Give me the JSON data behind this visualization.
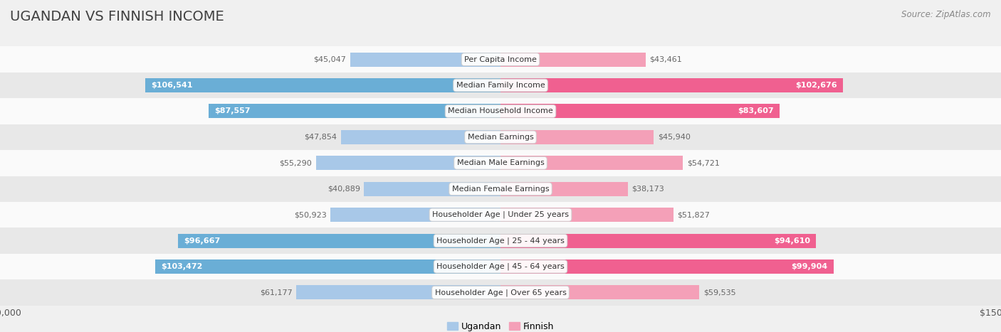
{
  "title": "UGANDAN VS FINNISH INCOME",
  "source": "Source: ZipAtlas.com",
  "categories": [
    "Per Capita Income",
    "Median Family Income",
    "Median Household Income",
    "Median Earnings",
    "Median Male Earnings",
    "Median Female Earnings",
    "Householder Age | Under 25 years",
    "Householder Age | 25 - 44 years",
    "Householder Age | 45 - 64 years",
    "Householder Age | Over 65 years"
  ],
  "ugandan_values": [
    45047,
    106541,
    87557,
    47854,
    55290,
    40889,
    50923,
    96667,
    103472,
    61177
  ],
  "finnish_values": [
    43461,
    102676,
    83607,
    45940,
    54721,
    38173,
    51827,
    94610,
    99904,
    59535
  ],
  "ugandan_labels": [
    "$45,047",
    "$106,541",
    "$87,557",
    "$47,854",
    "$55,290",
    "$40,889",
    "$50,923",
    "$96,667",
    "$103,472",
    "$61,177"
  ],
  "finnish_labels": [
    "$43,461",
    "$102,676",
    "$83,607",
    "$45,940",
    "$54,721",
    "$38,173",
    "$51,827",
    "$94,610",
    "$99,904",
    "$59,535"
  ],
  "ugandan_color_normal": "#a8c8e8",
  "ugandan_color_large": "#6aaed6",
  "finnish_color_normal": "#f4a0b8",
  "finnish_color_large": "#f06090",
  "large_threshold": 80000,
  "max_value": 150000,
  "background_color": "#f0f0f0",
  "row_bg_light": "#fafafa",
  "row_bg_dark": "#e8e8e8",
  "bar_height": 0.55,
  "legend_ugandan": "Ugandan",
  "legend_finnish": "Finnish",
  "title_fontsize": 14,
  "label_fontsize": 8,
  "category_fontsize": 8,
  "axis_fontsize": 9
}
